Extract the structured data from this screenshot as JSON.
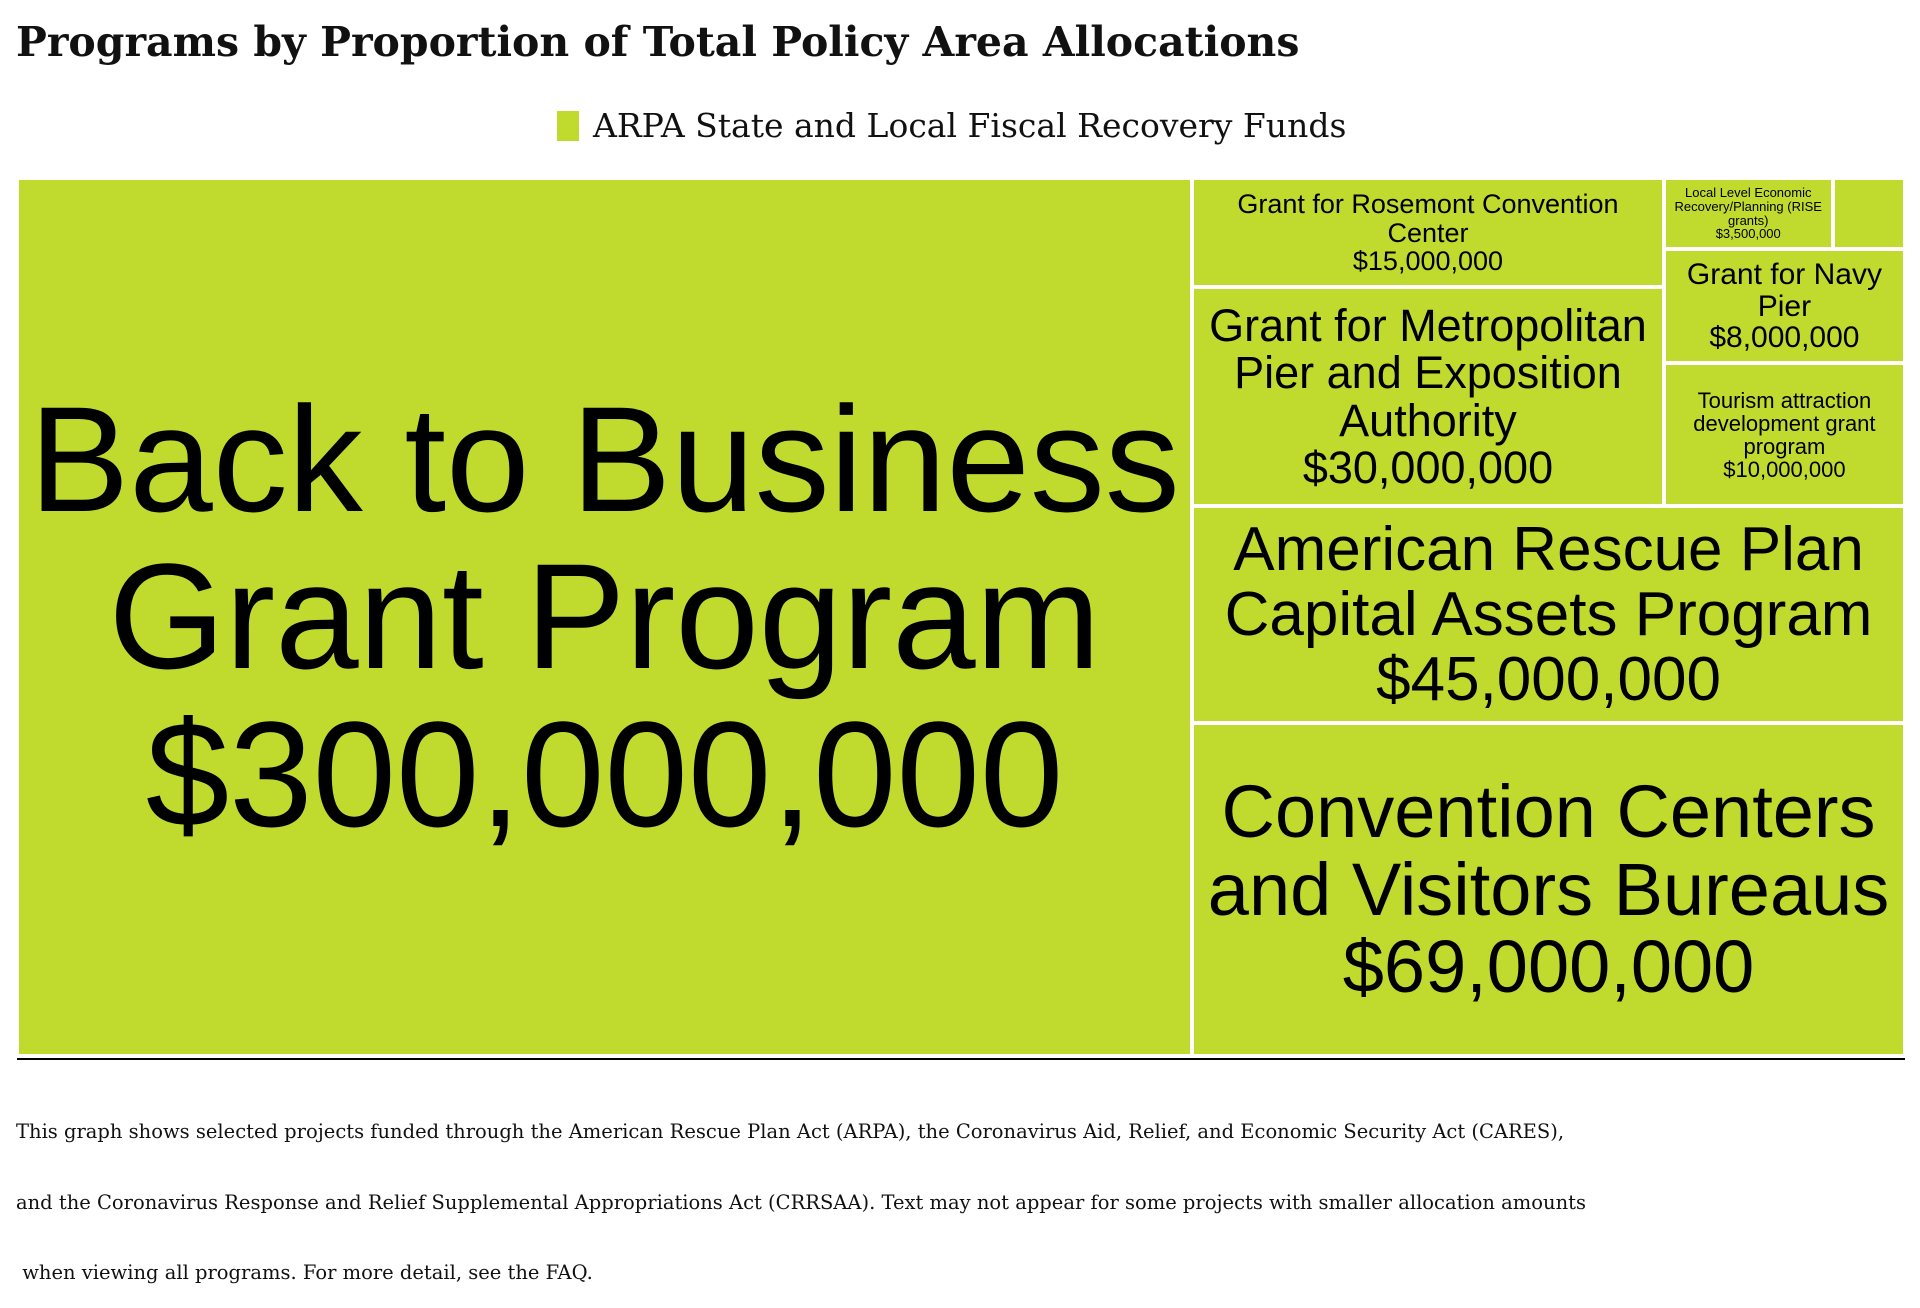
{
  "chart_data": {
    "type": "treemap",
    "title": "Programs by Proportion of Total Policy Area Allocations",
    "categories": [
      "Back to Business Grant Program",
      "Convention Centers and Visitors Bureaus",
      "American Rescue Plan Capital Assets Program",
      "Grant for Metropolitan Pier and Exposition Authority",
      "Grant for Rosemont Convention Center",
      "Tourism attraction development grant program",
      "Grant for Navy Pier",
      "Local Level Economic Recovery/Planning (RISE grants)",
      null
    ],
    "series": [
      {
        "name": "ARPA State and Local Fiscal Recovery Funds",
        "color": "#c0da2e",
        "values": [
          300000000,
          69000000,
          45000000,
          30000000,
          15000000,
          10000000,
          8000000,
          3500000,
          1500000
        ],
        "value_labels": [
          "$300,000,000",
          "$69,000,000",
          "$45,000,000",
          "$30,000,000",
          "$15,000,000",
          "$10,000,000",
          "$8,000,000",
          "$3,500,000",
          null
        ]
      }
    ],
    "footnote": [
      "This graph shows selected projects funded through the American Rescue Plan Act (ARPA), the Coronavirus Aid, Relief, and Economic Security Act (CARES),",
      "and the Coronavirus Response and Relief Supplemental Appropriations Act (CRRSAA). Text may not appear for some projects with smaller allocation amounts",
      " when viewing all programs. For more detail, see the FAQ."
    ]
  }
}
